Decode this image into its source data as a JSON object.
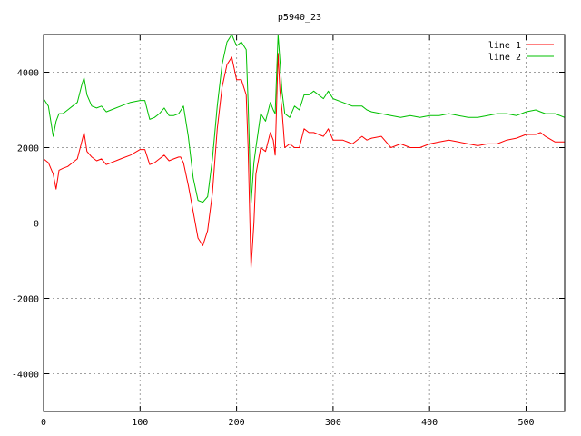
{
  "chart_data": {
    "type": "line",
    "title": "p5940_23",
    "xlim": [
      0,
      540
    ],
    "ylim": [
      -5000,
      5000
    ],
    "x_ticks": [
      0,
      100,
      200,
      300,
      400,
      500
    ],
    "x_tick_labels": [
      "0",
      "100",
      "200",
      "300",
      "400",
      "500"
    ],
    "y_ticks": [
      -4000,
      -2000,
      0,
      2000,
      4000
    ],
    "y_tick_labels": [
      "-4000",
      "-2000",
      "0",
      "2000",
      "4000"
    ],
    "grid": true,
    "legend_position": "top-right",
    "series": [
      {
        "name": "line 1",
        "color": "#ff0000",
        "points": [
          [
            0,
            1700
          ],
          [
            5,
            1600
          ],
          [
            10,
            1300
          ],
          [
            13,
            900
          ],
          [
            16,
            1400
          ],
          [
            20,
            1450
          ],
          [
            25,
            1500
          ],
          [
            30,
            1600
          ],
          [
            35,
            1700
          ],
          [
            40,
            2200
          ],
          [
            42,
            2400
          ],
          [
            45,
            1900
          ],
          [
            50,
            1750
          ],
          [
            55,
            1650
          ],
          [
            60,
            1700
          ],
          [
            65,
            1550
          ],
          [
            70,
            1600
          ],
          [
            80,
            1700
          ],
          [
            90,
            1800
          ],
          [
            100,
            1950
          ],
          [
            105,
            1950
          ],
          [
            110,
            1550
          ],
          [
            115,
            1600
          ],
          [
            120,
            1700
          ],
          [
            125,
            1800
          ],
          [
            130,
            1650
          ],
          [
            135,
            1700
          ],
          [
            140,
            1750
          ],
          [
            142,
            1750
          ],
          [
            145,
            1600
          ],
          [
            150,
            1000
          ],
          [
            155,
            300
          ],
          [
            160,
            -400
          ],
          [
            165,
            -600
          ],
          [
            170,
            -200
          ],
          [
            175,
            800
          ],
          [
            180,
            2500
          ],
          [
            185,
            3600
          ],
          [
            190,
            4200
          ],
          [
            195,
            4400
          ],
          [
            200,
            3800
          ],
          [
            205,
            3800
          ],
          [
            210,
            3400
          ],
          [
            212,
            2000
          ],
          [
            215,
            -1200
          ],
          [
            218,
            0
          ],
          [
            220,
            1300
          ],
          [
            225,
            2000
          ],
          [
            230,
            1900
          ],
          [
            235,
            2400
          ],
          [
            238,
            2200
          ],
          [
            240,
            1800
          ],
          [
            243,
            4500
          ],
          [
            245,
            3500
          ],
          [
            247,
            3000
          ],
          [
            250,
            2000
          ],
          [
            255,
            2100
          ],
          [
            260,
            2000
          ],
          [
            265,
            2000
          ],
          [
            270,
            2500
          ],
          [
            275,
            2400
          ],
          [
            280,
            2400
          ],
          [
            290,
            2300
          ],
          [
            295,
            2500
          ],
          [
            300,
            2200
          ],
          [
            310,
            2200
          ],
          [
            320,
            2100
          ],
          [
            330,
            2300
          ],
          [
            335,
            2200
          ],
          [
            340,
            2250
          ],
          [
            350,
            2300
          ],
          [
            360,
            2000
          ],
          [
            370,
            2100
          ],
          [
            380,
            2000
          ],
          [
            390,
            2000
          ],
          [
            400,
            2100
          ],
          [
            410,
            2150
          ],
          [
            420,
            2200
          ],
          [
            430,
            2150
          ],
          [
            440,
            2100
          ],
          [
            450,
            2050
          ],
          [
            460,
            2100
          ],
          [
            470,
            2100
          ],
          [
            480,
            2200
          ],
          [
            490,
            2250
          ],
          [
            500,
            2350
          ],
          [
            510,
            2350
          ],
          [
            515,
            2400
          ],
          [
            520,
            2300
          ],
          [
            530,
            2150
          ],
          [
            540,
            2150
          ]
        ]
      },
      {
        "name": "line 2",
        "color": "#00c000",
        "points": [
          [
            0,
            3300
          ],
          [
            5,
            3100
          ],
          [
            10,
            2300
          ],
          [
            13,
            2700
          ],
          [
            16,
            2900
          ],
          [
            20,
            2900
          ],
          [
            25,
            3000
          ],
          [
            30,
            3100
          ],
          [
            35,
            3200
          ],
          [
            40,
            3700
          ],
          [
            42,
            3850
          ],
          [
            45,
            3400
          ],
          [
            50,
            3100
          ],
          [
            55,
            3050
          ],
          [
            60,
            3100
          ],
          [
            65,
            2950
          ],
          [
            70,
            3000
          ],
          [
            80,
            3100
          ],
          [
            90,
            3200
          ],
          [
            100,
            3250
          ],
          [
            105,
            3250
          ],
          [
            110,
            2750
          ],
          [
            115,
            2800
          ],
          [
            120,
            2900
          ],
          [
            125,
            3050
          ],
          [
            130,
            2850
          ],
          [
            135,
            2850
          ],
          [
            140,
            2900
          ],
          [
            145,
            3100
          ],
          [
            150,
            2300
          ],
          [
            155,
            1200
          ],
          [
            160,
            600
          ],
          [
            165,
            550
          ],
          [
            170,
            700
          ],
          [
            175,
            1700
          ],
          [
            180,
            3100
          ],
          [
            185,
            4200
          ],
          [
            190,
            4800
          ],
          [
            195,
            5000
          ],
          [
            200,
            4700
          ],
          [
            205,
            4800
          ],
          [
            210,
            4600
          ],
          [
            212,
            3200
          ],
          [
            215,
            500
          ],
          [
            218,
            1600
          ],
          [
            220,
            2000
          ],
          [
            225,
            2900
          ],
          [
            230,
            2700
          ],
          [
            235,
            3200
          ],
          [
            238,
            3000
          ],
          [
            240,
            2900
          ],
          [
            243,
            5000
          ],
          [
            245,
            4300
          ],
          [
            247,
            3500
          ],
          [
            250,
            2900
          ],
          [
            255,
            2800
          ],
          [
            260,
            3100
          ],
          [
            265,
            3000
          ],
          [
            270,
            3400
          ],
          [
            275,
            3400
          ],
          [
            280,
            3500
          ],
          [
            290,
            3300
          ],
          [
            295,
            3500
          ],
          [
            300,
            3300
          ],
          [
            310,
            3200
          ],
          [
            320,
            3100
          ],
          [
            330,
            3100
          ],
          [
            335,
            3000
          ],
          [
            340,
            2950
          ],
          [
            350,
            2900
          ],
          [
            360,
            2850
          ],
          [
            370,
            2800
          ],
          [
            380,
            2850
          ],
          [
            390,
            2800
          ],
          [
            400,
            2850
          ],
          [
            410,
            2850
          ],
          [
            420,
            2900
          ],
          [
            430,
            2850
          ],
          [
            440,
            2800
          ],
          [
            450,
            2800
          ],
          [
            460,
            2850
          ],
          [
            470,
            2900
          ],
          [
            480,
            2900
          ],
          [
            490,
            2850
          ],
          [
            500,
            2950
          ],
          [
            510,
            3000
          ],
          [
            515,
            2950
          ],
          [
            520,
            2900
          ],
          [
            530,
            2900
          ],
          [
            540,
            2800
          ]
        ]
      }
    ]
  }
}
